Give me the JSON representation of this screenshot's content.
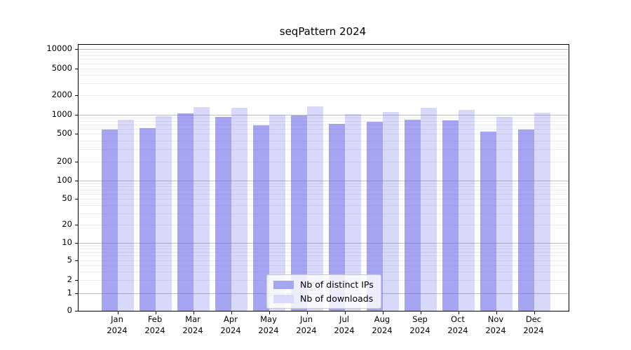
{
  "title": "seqPattern 2024",
  "chart_data": {
    "type": "bar",
    "title": "seqPattern 2024",
    "x_categories": [
      "Jan",
      "Feb",
      "Mar",
      "Apr",
      "May",
      "Jun",
      "Jul",
      "Aug",
      "Sep",
      "Oct",
      "Nov",
      "Dec"
    ],
    "x_year_label": "2024",
    "series": [
      {
        "name": "Nb of distinct IPs",
        "fill": "rgba(100,100,235,0.58)",
        "swatch": "#a5a5f0",
        "values": [
          580,
          615,
          1050,
          930,
          680,
          975,
          720,
          775,
          835,
          815,
          540,
          585
        ]
      },
      {
        "name": "Nb of downloads",
        "fill": "rgba(100,100,235,0.25)",
        "swatch": "#d9d9f9",
        "values": [
          840,
          950,
          1310,
          1280,
          1010,
          1350,
          1030,
          1100,
          1280,
          1190,
          930,
          1080
        ]
      }
    ],
    "y_scale": "symlog",
    "y_ticks": [
      0,
      1,
      2,
      5,
      10,
      20,
      50,
      100,
      200,
      500,
      1000,
      2000,
      5000,
      10000
    ],
    "ylim": [
      0,
      10000
    ],
    "grid": "horizontal; dark lines at powers of 10, light log minors",
    "legend_position": "inside plot, lower center",
    "colors": {
      "major_grid": "#bdbdbd",
      "minor_grid": "#ececec",
      "spine": "#000000",
      "text": "#000000"
    }
  }
}
